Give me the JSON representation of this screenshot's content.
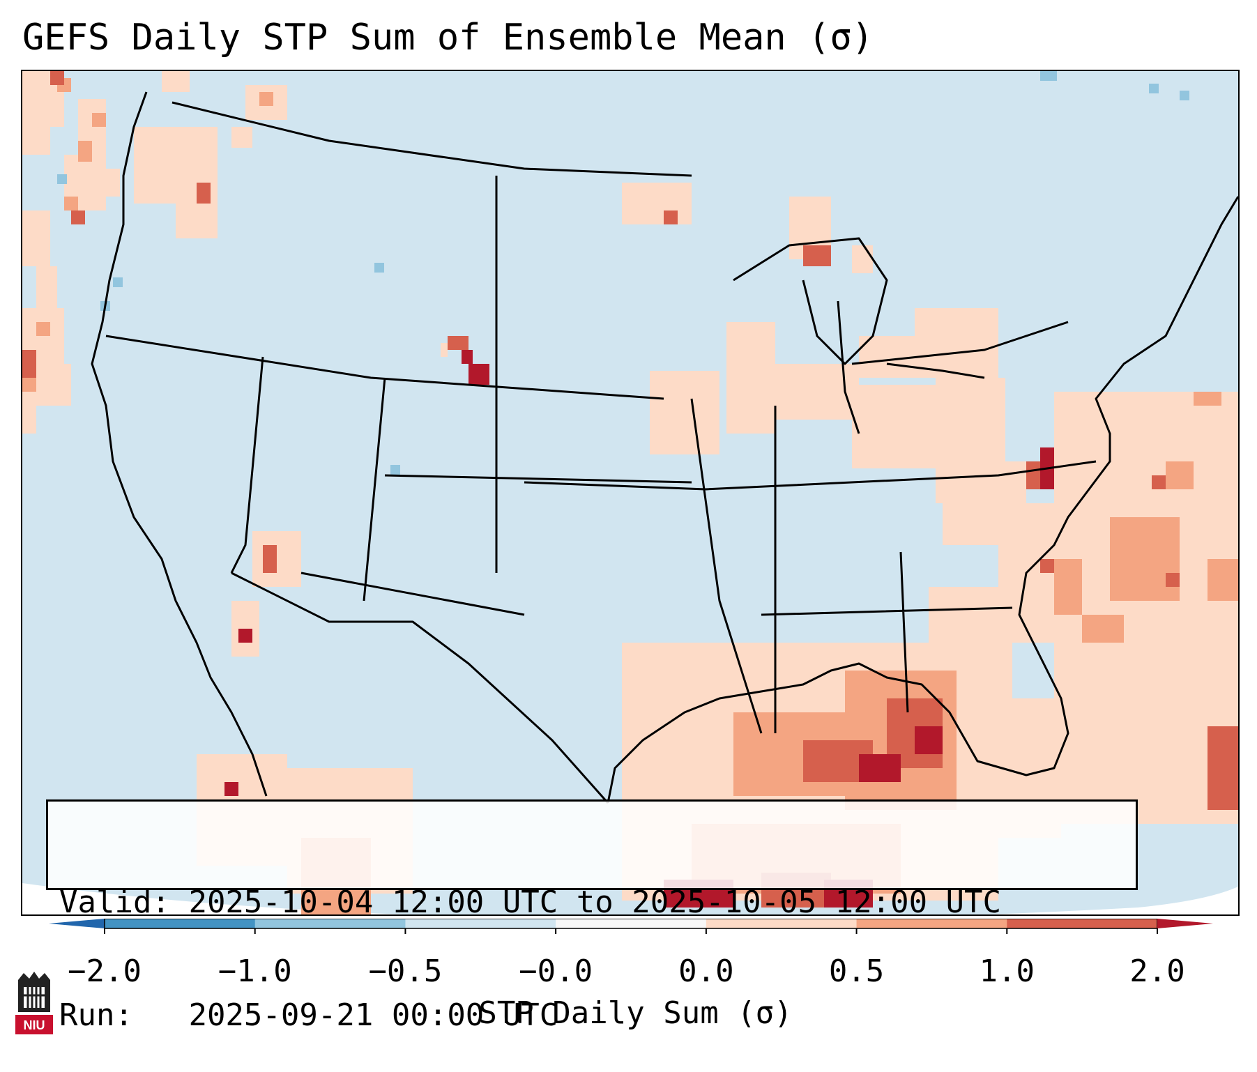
{
  "title": "GEFS Daily STP Sum of Ensemble Mean (σ)",
  "info": {
    "valid_label": "Valid:",
    "valid_value": "2025-10-04 12:00 UTC to 2025-10-05 12:00 UTC",
    "run_label": "Run:",
    "run_value": "2025-09-21 00:00 UTC"
  },
  "colorbar": {
    "label": "STP Daily Sum (σ)",
    "ticks": [
      "−2.0",
      "−1.0",
      "−0.5",
      "−0.0",
      "0.0",
      "0.5",
      "1.0",
      "2.0"
    ],
    "colors": [
      "#4393c3",
      "#92c5de",
      "#d1e5f0",
      "#f7f7f7",
      "#fddbc7",
      "#f4a582",
      "#d6604d"
    ],
    "extend_low_color": "#2166ac",
    "extend_high_color": "#b2182b"
  },
  "logo": {
    "text": "NIU",
    "icon": "niu-logo-icon"
  },
  "colors": {
    "background_field": "#d1e5f0",
    "light_positive": "#fddbc7",
    "medium_positive": "#f4a582",
    "strong_positive": "#d6604d",
    "max_positive": "#b2182b",
    "light_negative": "#92c5de"
  }
}
